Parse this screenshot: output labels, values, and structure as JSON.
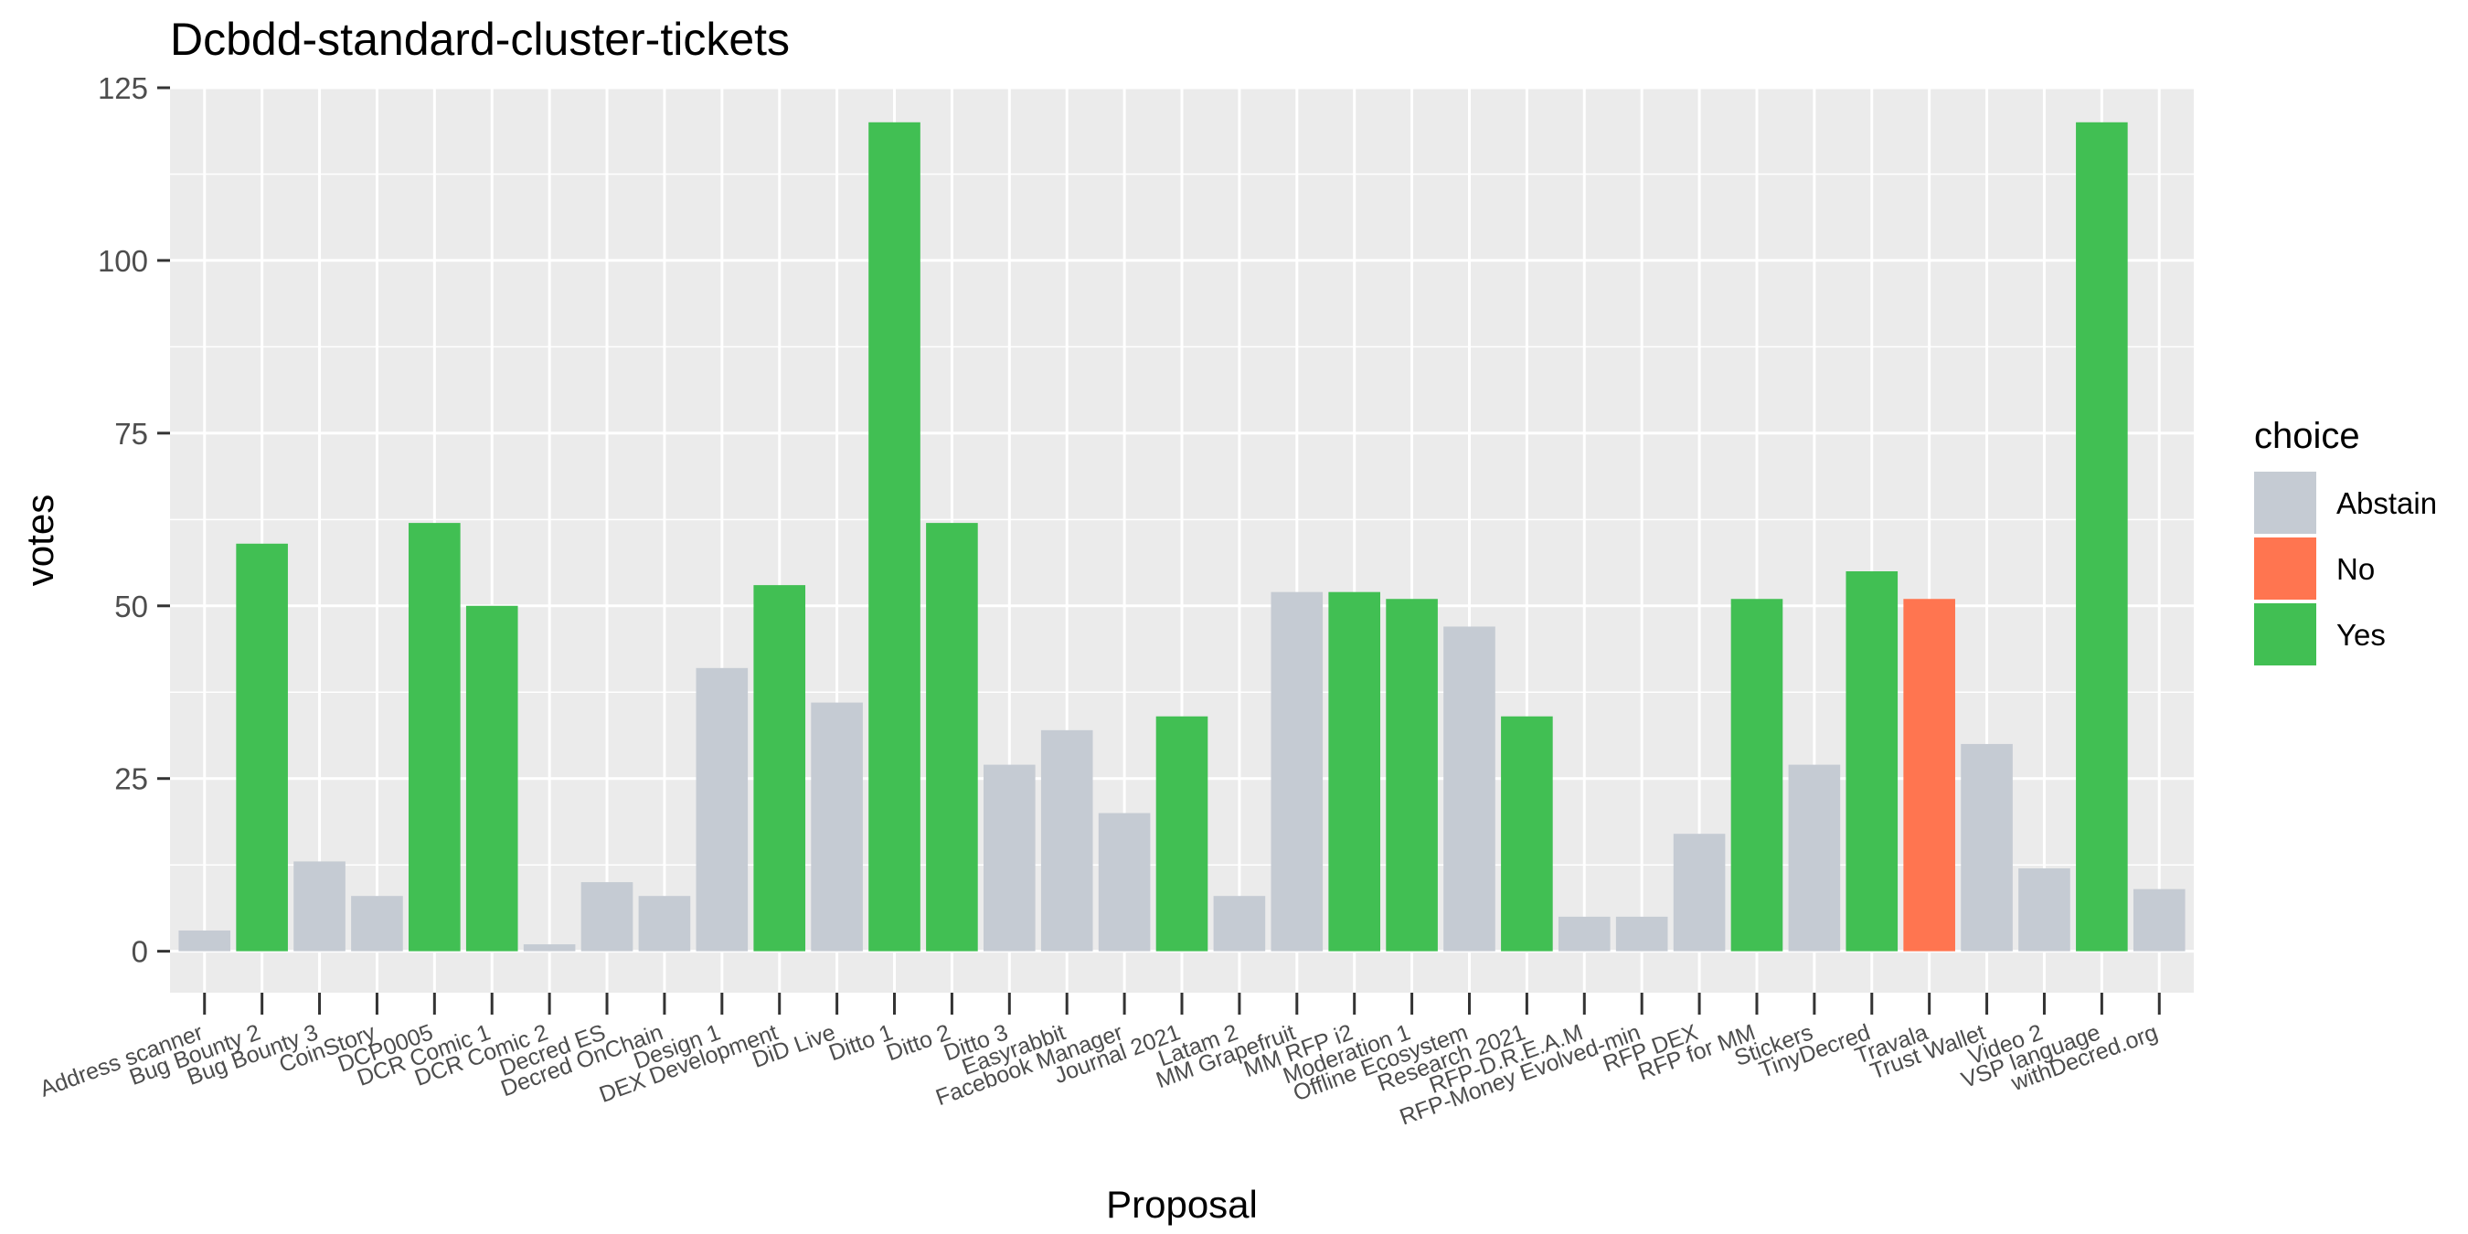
{
  "chart_data": {
    "type": "bar",
    "title": "Dcbdd-standard-cluster-tickets",
    "xlabel": "Proposal",
    "ylabel": "votes",
    "ylim": [
      -6,
      125
    ],
    "yticks": [
      0,
      25,
      50,
      75,
      100,
      125
    ],
    "grid": true,
    "legend": {
      "title": "choice",
      "placement": "right",
      "entries": [
        {
          "label": "Abstain",
          "color": "#C5CBD3"
        },
        {
          "label": "No",
          "color": "#FF7550"
        },
        {
          "label": "Yes",
          "color": "#41BF53"
        }
      ]
    },
    "categories": [
      "Address scanner",
      "Bug Bounty 2",
      "Bug Bounty 3",
      "CoinStory",
      "DCP0005",
      "DCR Comic 1",
      "DCR Comic 2",
      "Decred ES",
      "Decred OnChain",
      "Design 1",
      "DEX Development",
      "DiD Live",
      "Ditto 1",
      "Ditto 2",
      "Ditto 3",
      "Easyrabbit",
      "Facebook Manager",
      "Journal 2021",
      "Latam 2",
      "MM Grapefruit",
      "MM RFP i2",
      "Moderation 1",
      "Offline Ecosystem",
      "Research 2021",
      "RFP-D.R.E.A.M",
      "RFP-Money Evolved-min",
      "RFP DEX",
      "RFP for MM",
      "Stickers",
      "TinyDecred",
      "Travala",
      "Trust Wallet",
      "Video 2",
      "VSP language",
      "withDecred.org"
    ],
    "bars": [
      {
        "category": "Address scanner",
        "value": 3,
        "choice": "Abstain"
      },
      {
        "category": "Bug Bounty 2",
        "value": 59,
        "choice": "Yes"
      },
      {
        "category": "Bug Bounty 3",
        "value": 13,
        "choice": "Abstain"
      },
      {
        "category": "CoinStory",
        "value": 8,
        "choice": "Abstain"
      },
      {
        "category": "DCP0005",
        "value": 62,
        "choice": "Yes"
      },
      {
        "category": "DCR Comic 1",
        "value": 50,
        "choice": "Yes"
      },
      {
        "category": "DCR Comic 2",
        "value": 1,
        "choice": "Abstain"
      },
      {
        "category": "Decred ES",
        "value": 10,
        "choice": "Abstain"
      },
      {
        "category": "Decred OnChain",
        "value": 8,
        "choice": "Abstain"
      },
      {
        "category": "Design 1",
        "value": 41,
        "choice": "Abstain"
      },
      {
        "category": "DEX Development",
        "value": 53,
        "choice": "Yes"
      },
      {
        "category": "DiD Live",
        "value": 36,
        "choice": "Abstain"
      },
      {
        "category": "Ditto 1",
        "value": 120,
        "choice": "Yes"
      },
      {
        "category": "Ditto 2",
        "value": 62,
        "choice": "Yes"
      },
      {
        "category": "Ditto 3",
        "value": 27,
        "choice": "Abstain"
      },
      {
        "category": "Easyrabbit",
        "value": 32,
        "choice": "Abstain"
      },
      {
        "category": "Facebook Manager",
        "value": 20,
        "choice": "Abstain"
      },
      {
        "category": "Journal 2021",
        "value": 34,
        "choice": "Yes"
      },
      {
        "category": "Latam 2",
        "value": 8,
        "choice": "Abstain"
      },
      {
        "category": "MM Grapefruit",
        "value": 52,
        "choice": "Abstain"
      },
      {
        "category": "MM RFP i2",
        "value": 52,
        "choice": "Yes"
      },
      {
        "category": "Moderation 1",
        "value": 51,
        "choice": "Yes"
      },
      {
        "category": "Offline Ecosystem",
        "value": 47,
        "choice": "Abstain"
      },
      {
        "category": "Research 2021",
        "value": 34,
        "choice": "Yes"
      },
      {
        "category": "RFP-D.R.E.A.M",
        "value": 5,
        "choice": "Abstain"
      },
      {
        "category": "RFP-Money Evolved-min",
        "value": 5,
        "choice": "Abstain"
      },
      {
        "category": "RFP DEX",
        "value": 17,
        "choice": "Abstain"
      },
      {
        "category": "RFP for MM",
        "value": 51,
        "choice": "Yes"
      },
      {
        "category": "Stickers",
        "value": 27,
        "choice": "Abstain"
      },
      {
        "category": "TinyDecred",
        "value": 55,
        "choice": "Yes"
      },
      {
        "category": "Travala",
        "value": 51,
        "choice": "No"
      },
      {
        "category": "Trust Wallet",
        "value": 30,
        "choice": "Abstain"
      },
      {
        "category": "Video 2",
        "value": 12,
        "choice": "Abstain"
      },
      {
        "category": "VSP language",
        "value": 120,
        "choice": "Yes"
      },
      {
        "category": "withDecred.org",
        "value": 9,
        "choice": "Abstain"
      }
    ],
    "colors": {
      "panel_background": "#EBEBEB",
      "gridline": "#FFFFFF",
      "Abstain": "#C5CBD3",
      "No": "#FF7550",
      "Yes": "#41BF53"
    }
  }
}
